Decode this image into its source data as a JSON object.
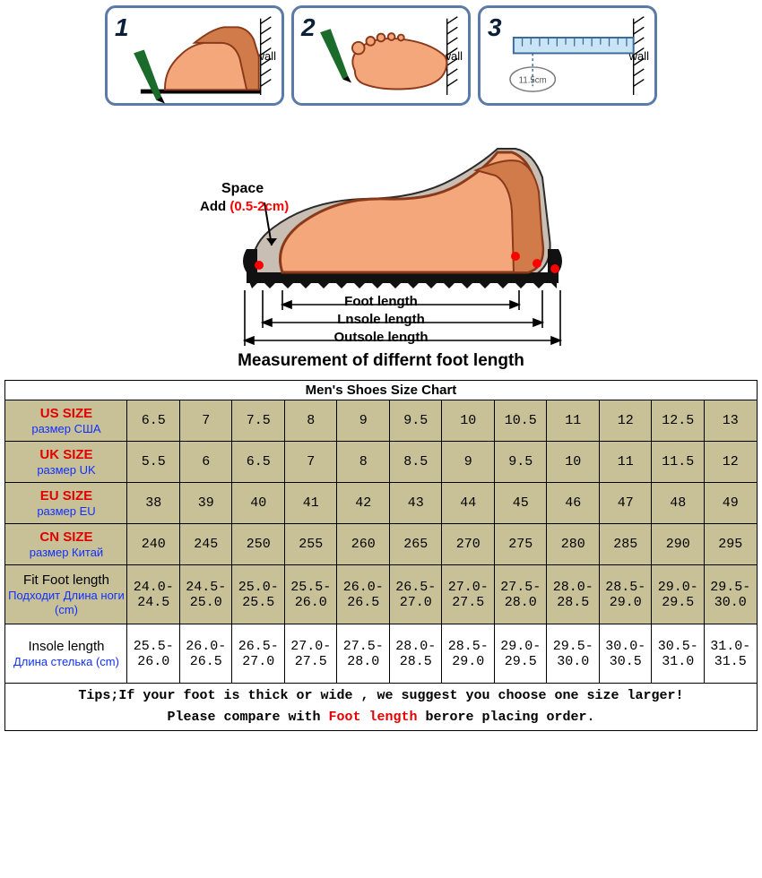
{
  "steps": {
    "s1": {
      "num": "1",
      "wall": "wall"
    },
    "s2": {
      "num": "2",
      "wall": "wall"
    },
    "s3": {
      "num": "3",
      "wall": "wall",
      "measure": "11.5cm"
    }
  },
  "diagram": {
    "space_label": "Space",
    "add_label": "Add",
    "space_range": "(0.5-2cm)",
    "foot_length": "Foot length",
    "insole_length": "Lnsole length",
    "outsole_length": "Outsole length"
  },
  "caption": "Measurement of differnt foot length",
  "chart": {
    "title": "Men's Shoes Size Chart",
    "columns": 12,
    "rows": [
      {
        "label_main": "US SIZE",
        "label_main_color": "red",
        "label_sub": "размер США",
        "label_sub_color": "blue",
        "cells": [
          "6.5",
          "7",
          "7.5",
          "8",
          "9",
          "9.5",
          "10",
          "10.5",
          "11",
          "12",
          "12.5",
          "13"
        ]
      },
      {
        "label_main": "UK SIZE",
        "label_main_color": "red",
        "label_sub": "размер UK",
        "label_sub_color": "blue",
        "cells": [
          "5.5",
          "6",
          "6.5",
          "7",
          "8",
          "8.5",
          "9",
          "9.5",
          "10",
          "11",
          "11.5",
          "12"
        ]
      },
      {
        "label_main": "EU SIZE",
        "label_main_color": "red",
        "label_sub": "размер EU",
        "label_sub_color": "blue",
        "cells": [
          "38",
          "39",
          "40",
          "41",
          "42",
          "43",
          "44",
          "45",
          "46",
          "47",
          "48",
          "49"
        ]
      },
      {
        "label_main": "CN SIZE",
        "label_main_color": "red",
        "label_sub": "размер Китай",
        "label_sub_color": "blue",
        "cells": [
          "240",
          "245",
          "250",
          "255",
          "260",
          "265",
          "270",
          "275",
          "280",
          "285",
          "290",
          "295"
        ]
      },
      {
        "label_main": "Fit Foot length",
        "label_main_color": "black",
        "label_sub": "Подходит Длина ноги (cm)",
        "label_sub_color": "blue",
        "cells": [
          "24.0-\n24.5",
          "24.5-\n25.0",
          "25.0-\n25.5",
          "25.5-\n26.0",
          "26.0-\n26.5",
          "26.5-\n27.0",
          "27.0-\n27.5",
          "27.5-\n28.0",
          "28.0-\n28.5",
          "28.5-\n29.0",
          "29.0-\n29.5",
          "29.5-\n30.0"
        ]
      },
      {
        "label_main": "Insole length",
        "label_main_color": "black",
        "label_sub": "Длина стелька (cm)",
        "label_sub_color": "blue",
        "cells": [
          "25.5-\n26.0",
          "26.0-\n26.5",
          "26.5-\n27.0",
          "27.0-\n27.5",
          "27.5-\n28.0",
          "28.0-\n28.5",
          "28.5-\n29.0",
          "29.0-\n29.5",
          "29.5-\n30.0",
          "30.0-\n30.5",
          "30.5-\n31.0",
          "31.0-\n31.5"
        ]
      }
    ],
    "tips_pre": "Tips;If your foot is thick or wide , we suggest you choose one size larger!",
    "tips_line2_a": "Please compare with ",
    "tips_line2_b": "Foot length",
    "tips_line2_c": " berore placing order."
  },
  "colors": {
    "card_border": "#5a7aa8",
    "table_bg": "#c8c197",
    "red": "#e00000",
    "blue": "#1030ff",
    "foot_skin": "#f4a77a",
    "foot_shadow": "#d17a4a"
  }
}
